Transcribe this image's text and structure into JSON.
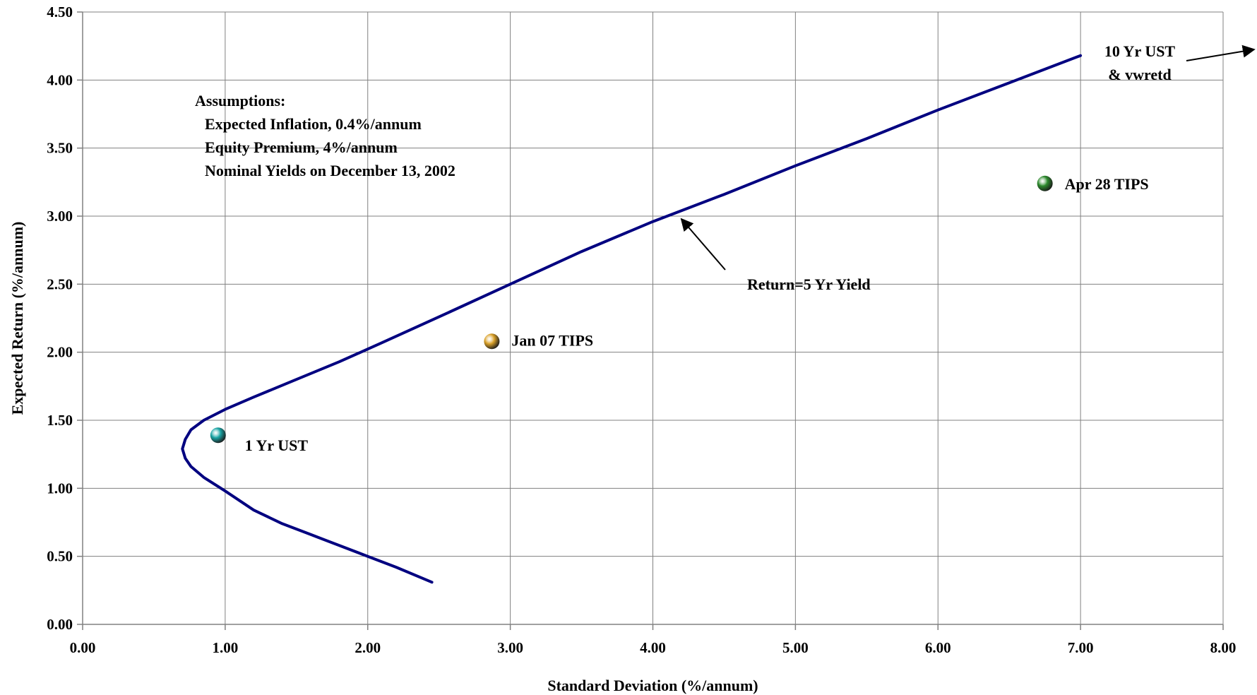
{
  "chart_data": {
    "type": "line",
    "title": "",
    "xlabel": "Standard Deviation (%/annum)",
    "ylabel": "Expected Return (%/annum)",
    "xlim": [
      0,
      8
    ],
    "ylim": [
      0,
      4.5
    ],
    "x_ticks": [
      "0.00",
      "1.00",
      "2.00",
      "3.00",
      "4.00",
      "5.00",
      "6.00",
      "7.00",
      "8.00"
    ],
    "y_ticks": [
      "0.00",
      "0.50",
      "1.00",
      "1.50",
      "2.00",
      "2.50",
      "3.00",
      "3.50",
      "4.00",
      "4.50"
    ],
    "grid": true,
    "legend": "none",
    "series": [
      {
        "color": "#000080",
        "x": [
          2.45,
          2.2,
          2.0,
          1.8,
          1.6,
          1.4,
          1.2,
          1.0,
          0.85,
          0.76,
          0.72,
          0.7,
          0.72,
          0.76,
          0.85,
          1.0,
          1.2,
          1.5,
          1.8,
          2.1,
          2.5,
          3.0,
          3.5,
          4.0,
          4.5,
          5.0,
          5.5,
          6.0,
          6.5,
          7.0
        ],
        "y": [
          0.31,
          0.42,
          0.5,
          0.58,
          0.66,
          0.74,
          0.84,
          0.98,
          1.08,
          1.16,
          1.22,
          1.29,
          1.36,
          1.43,
          1.5,
          1.58,
          1.67,
          1.8,
          1.93,
          2.07,
          2.26,
          2.5,
          2.74,
          2.96,
          3.16,
          3.37,
          3.57,
          3.78,
          3.98,
          4.18
        ]
      }
    ],
    "points": [
      {
        "label": "1 Yr UST",
        "x": 0.95,
        "y": 1.39,
        "color": "#1aa5a5"
      },
      {
        "label": "Jan 07 TIPS",
        "x": 2.87,
        "y": 2.08,
        "color": "#d9a028"
      },
      {
        "label": "Apr 28 TIPS",
        "x": 6.75,
        "y": 3.24,
        "color": "#2e8b2e"
      }
    ],
    "annotations": {
      "assumptions": [
        "Assumptions:",
        "Expected Inflation, 0.4%/annum",
        "Equity Premium, 4%/annum",
        "Nominal Yields on December 13, 2002"
      ],
      "return_label": "Return=5 Yr Yield",
      "return_point": {
        "x": 4.18,
        "y": 3.0
      },
      "ust10_line1": "10 Yr UST",
      "ust10_line2": "& vwretd"
    }
  }
}
